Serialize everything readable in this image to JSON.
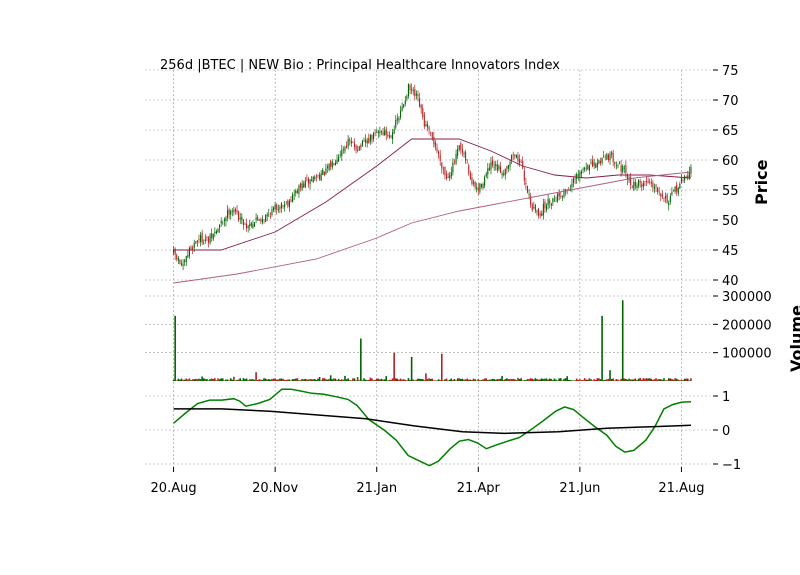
{
  "chart_data": [
    {
      "type": "candlestick",
      "title": "256d |BTEC | NEW Bio : Principal Healthcare Innovators Index",
      "ylabel": "Price",
      "ylim": [
        39,
        75
      ],
      "yticks": [
        "40",
        "45",
        "50",
        "55",
        "60",
        "65",
        "70",
        "75"
      ],
      "x_ticks": [
        {
          "label": "20.Aug",
          "day": 0
        },
        {
          "label": "20.Nov",
          "day": 64
        },
        {
          "label": "21.Jan",
          "day": 128
        },
        {
          "label": "21.Apr",
          "day": 192
        },
        {
          "label": "21.Jun",
          "day": 256
        },
        {
          "label": "21.Aug",
          "day": 320
        }
      ],
      "x_range": [
        -18,
        338
      ],
      "up_color": "#006400",
      "down_color": "#b22222",
      "close_anchors": [
        [
          0,
          44.5
        ],
        [
          6,
          42
        ],
        [
          10,
          45
        ],
        [
          16,
          47
        ],
        [
          22,
          46.5
        ],
        [
          28,
          48.5
        ],
        [
          36,
          52
        ],
        [
          40,
          51
        ],
        [
          46,
          49
        ],
        [
          52,
          50
        ],
        [
          58,
          50.5
        ],
        [
          64,
          52
        ],
        [
          72,
          53
        ],
        [
          80,
          55.5
        ],
        [
          88,
          57
        ],
        [
          96,
          58
        ],
        [
          104,
          61
        ],
        [
          110,
          63
        ],
        [
          116,
          62
        ],
        [
          122,
          63
        ],
        [
          130,
          65
        ],
        [
          136,
          64
        ],
        [
          142,
          67
        ],
        [
          148,
          72
        ],
        [
          154,
          70
        ],
        [
          158,
          66
        ],
        [
          164,
          63
        ],
        [
          168,
          60
        ],
        [
          172,
          57
        ],
        [
          176,
          59
        ],
        [
          180,
          62
        ],
        [
          184,
          60
        ],
        [
          188,
          56
        ],
        [
          192,
          55
        ],
        [
          196,
          57
        ],
        [
          200,
          59
        ],
        [
          208,
          58
        ],
        [
          214,
          61
        ],
        [
          218,
          60
        ],
        [
          222,
          56
        ],
        [
          226,
          52
        ],
        [
          230,
          51
        ],
        [
          236,
          53
        ],
        [
          242,
          54
        ],
        [
          248,
          55
        ],
        [
          254,
          57
        ],
        [
          260,
          59
        ],
        [
          266,
          59
        ],
        [
          272,
          61
        ],
        [
          278,
          60
        ],
        [
          284,
          58
        ],
        [
          288,
          56
        ],
        [
          294,
          56
        ],
        [
          300,
          56.5
        ],
        [
          306,
          55
        ],
        [
          312,
          53
        ],
        [
          316,
          55
        ],
        [
          322,
          57
        ],
        [
          326,
          58.5
        ]
      ],
      "moving_averages": [
        {
          "color": "#8b1a4a",
          "points": [
            [
              0,
              45
            ],
            [
              30,
              45
            ],
            [
              64,
              48
            ],
            [
              96,
              53
            ],
            [
              128,
              59
            ],
            [
              150,
              63.5
            ],
            [
              180,
              63.5
            ],
            [
              200,
              61.5
            ],
            [
              220,
              59
            ],
            [
              240,
              57.5
            ],
            [
              260,
              57
            ],
            [
              280,
              57.5
            ],
            [
              300,
              57.5
            ],
            [
              326,
              57
            ]
          ]
        },
        {
          "color": "#b06080",
          "points": [
            [
              0,
              39.5
            ],
            [
              40,
              41
            ],
            [
              90,
              43.5
            ],
            [
              128,
              47
            ],
            [
              150,
              49.5
            ],
            [
              180,
              51.5
            ],
            [
              200,
              52.5
            ],
            [
              230,
              54
            ],
            [
              260,
              55.5
            ],
            [
              290,
              57
            ],
            [
              326,
              58
            ]
          ]
        }
      ]
    },
    {
      "type": "bar",
      "ylabel": "Volume",
      "ylim": [
        0,
        300000
      ],
      "yticks": [
        "100000",
        "200000",
        "300000"
      ],
      "spikes": [
        [
          1,
          230000,
          "up"
        ],
        [
          19,
          16000,
          "up"
        ],
        [
          40,
          15000,
          "down"
        ],
        [
          55,
          31000,
          "down"
        ],
        [
          97,
          14000,
          "up"
        ],
        [
          104,
          20000,
          "up"
        ],
        [
          114,
          18000,
          "up"
        ],
        [
          122,
          14000,
          "down"
        ],
        [
          124,
          150000,
          "up"
        ],
        [
          131,
          12000,
          "down"
        ],
        [
          141,
          17000,
          "up"
        ],
        [
          147,
          100000,
          "down"
        ],
        [
          158,
          85000,
          "up"
        ],
        [
          168,
          27000,
          "down"
        ],
        [
          178,
          96000,
          "down"
        ],
        [
          218,
          18000,
          "up"
        ],
        [
          229,
          11000,
          "down"
        ],
        [
          241,
          10000,
          "up"
        ],
        [
          262,
          17000,
          "up"
        ],
        [
          273,
          10000,
          "down"
        ],
        [
          285,
          230000,
          "up"
        ],
        [
          290,
          38000,
          "up"
        ],
        [
          299,
          285000,
          "up"
        ],
        [
          310,
          11000,
          "down"
        ]
      ],
      "base_volume": 6000
    },
    {
      "type": "line",
      "ylim": [
        -1.05,
        1.35
      ],
      "yticks": [
        "−1",
        "0",
        "1"
      ],
      "series": [
        {
          "color": "#008000",
          "points": [
            [
              0,
              0.2
            ],
            [
              8,
              0.5
            ],
            [
              16,
              0.78
            ],
            [
              24,
              0.88
            ],
            [
              32,
              0.88
            ],
            [
              40,
              0.92
            ],
            [
              44,
              0.85
            ],
            [
              48,
              0.7
            ],
            [
              56,
              0.78
            ],
            [
              64,
              0.9
            ],
            [
              72,
              1.2
            ],
            [
              78,
              1.2
            ],
            [
              84,
              1.15
            ],
            [
              92,
              1.08
            ],
            [
              100,
              1.05
            ],
            [
              108,
              0.98
            ],
            [
              116,
              0.9
            ],
            [
              122,
              0.72
            ],
            [
              130,
              0.3
            ],
            [
              140,
              0.0
            ],
            [
              148,
              -0.3
            ],
            [
              156,
              -0.75
            ],
            [
              164,
              -0.92
            ],
            [
              170,
              -1.05
            ],
            [
              176,
              -0.92
            ],
            [
              184,
              -0.55
            ],
            [
              190,
              -0.33
            ],
            [
              196,
              -0.28
            ],
            [
              202,
              -0.38
            ],
            [
              208,
              -0.55
            ],
            [
              214,
              -0.45
            ],
            [
              222,
              -0.33
            ],
            [
              230,
              -0.22
            ],
            [
              238,
              0.02
            ],
            [
              246,
              0.28
            ],
            [
              254,
              0.55
            ],
            [
              260,
              0.68
            ],
            [
              266,
              0.6
            ],
            [
              272,
              0.38
            ],
            [
              280,
              0.1
            ],
            [
              288,
              -0.15
            ],
            [
              294,
              -0.48
            ],
            [
              300,
              -0.65
            ],
            [
              306,
              -0.6
            ],
            [
              314,
              -0.3
            ],
            [
              320,
              0.1
            ],
            [
              326,
              0.62
            ],
            [
              332,
              0.75
            ],
            [
              338,
              0.82
            ],
            [
              344,
              0.83
            ]
          ]
        },
        {
          "color": "#000000",
          "points": [
            [
              0,
              0.62
            ],
            [
              32,
              0.62
            ],
            [
              64,
              0.55
            ],
            [
              96,
              0.44
            ],
            [
              128,
              0.33
            ],
            [
              160,
              0.12
            ],
            [
              192,
              -0.05
            ],
            [
              220,
              -0.1
            ],
            [
              256,
              -0.05
            ],
            [
              288,
              0.05
            ],
            [
              320,
              0.1
            ],
            [
              344,
              0.14
            ]
          ]
        }
      ]
    }
  ]
}
